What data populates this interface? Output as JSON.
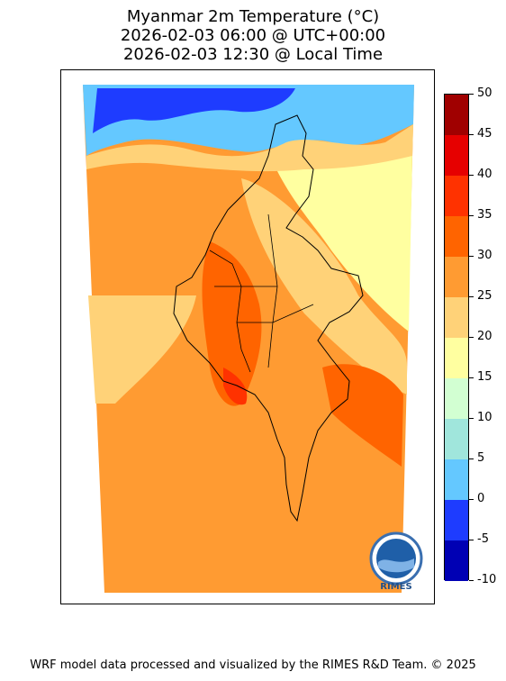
{
  "title": {
    "line1": "Myanmar 2m Temperature (°C)",
    "line2": "2026-02-03 06:00 @ UTC+00:00",
    "line3": "2026-02-03 12:30 @ Local Time"
  },
  "colorbar": {
    "levels": [
      -10,
      -5,
      0,
      5,
      10,
      15,
      20,
      25,
      30,
      35,
      40,
      45,
      50
    ],
    "labels": [
      "-10",
      "-5",
      "0",
      "5",
      "10",
      "15",
      "20",
      "25",
      "30",
      "35",
      "40",
      "45",
      "50"
    ],
    "colors": [
      "#0000b4",
      "#1e3cff",
      "#64c8ff",
      "#a0e6dc",
      "#d2ffd2",
      "#ffffa0",
      "#ffd278",
      "#ff9b32",
      "#ff6400",
      "#ff3200",
      "#e60000",
      "#a00000"
    ]
  },
  "map_colors": {
    "land_warm": "#ff9b32",
    "land_hot": "#ff6400",
    "land_mild": "#ffd278",
    "cool": "#ffffa0",
    "cold": "#64c8ff",
    "freezing": "#1e3cff"
  },
  "logo": {
    "text": "RIMES"
  },
  "footer": {
    "text": "WRF model data processed and visualized by the RIMES R&D Team. © 2025"
  }
}
